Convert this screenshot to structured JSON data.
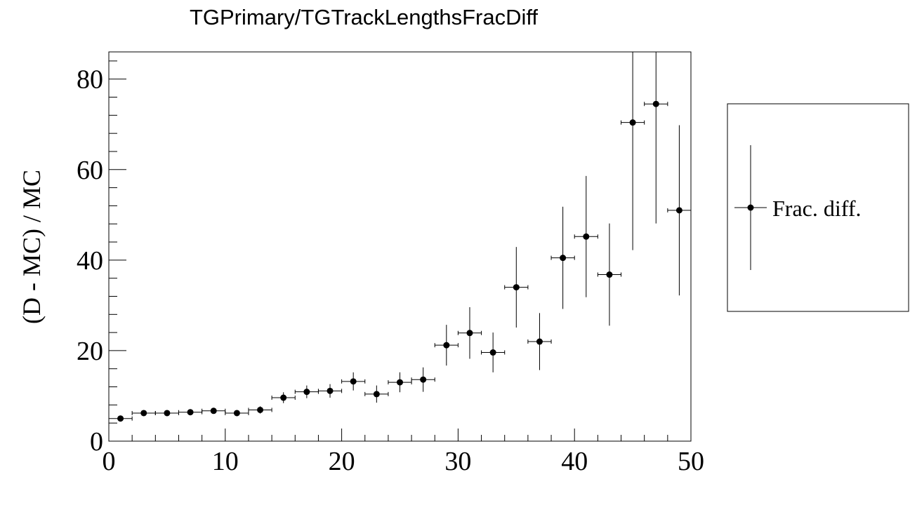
{
  "chart_data": {
    "type": "scatter",
    "title": "TGPrimary/TGTrackLengthsFracDiff",
    "xlabel": "",
    "ylabel": "(D - MC) / MC",
    "xlim": [
      0,
      50
    ],
    "ylim": [
      0,
      86
    ],
    "x_ticks": [
      0,
      10,
      20,
      30,
      40,
      50
    ],
    "y_ticks": [
      0,
      20,
      40,
      60,
      80
    ],
    "grid": false,
    "legend_position": "right",
    "x_bin_halfwidth": 1,
    "series": [
      {
        "name": "Frac. diff.",
        "x": [
          1,
          3,
          5,
          7,
          9,
          11,
          13,
          15,
          17,
          19,
          21,
          23,
          25,
          27,
          29,
          31,
          33,
          35,
          37,
          39,
          41,
          43,
          45,
          47,
          49
        ],
        "y": [
          5.0,
          6.2,
          6.2,
          6.4,
          6.7,
          6.2,
          6.9,
          9.6,
          10.9,
          11.1,
          13.2,
          10.4,
          13.0,
          13.6,
          21.2,
          23.9,
          19.6,
          34.0,
          22.0,
          40.5,
          45.2,
          36.8,
          70.4,
          74.5,
          51.0
        ],
        "y_err": [
          0.3,
          0.4,
          0.4,
          0.4,
          0.5,
          0.5,
          0.8,
          1.2,
          1.4,
          1.5,
          2.0,
          1.9,
          2.2,
          2.7,
          4.5,
          5.7,
          4.4,
          8.9,
          6.3,
          11.3,
          13.4,
          11.3,
          28.2,
          26.4,
          18.8
        ]
      }
    ]
  }
}
